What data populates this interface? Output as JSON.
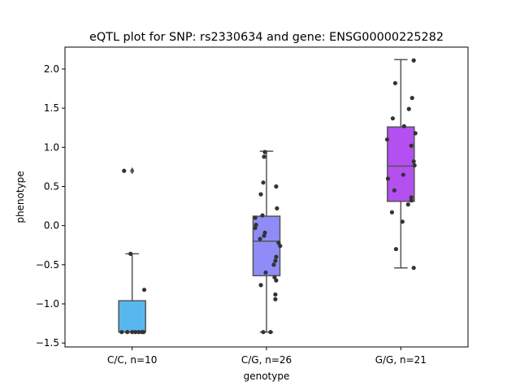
{
  "chart_data": {
    "type": "box",
    "title": "eQTL plot for SNP: rs2330634 and gene: ENSG00000225282",
    "xlabel": "genotype",
    "ylabel": "phenotype",
    "ylim": [
      -1.55,
      2.28
    ],
    "yticks": [
      -1.5,
      -1.0,
      -0.5,
      0.0,
      0.5,
      1.0,
      1.5,
      2.0
    ],
    "ytick_labels": [
      "−1.5",
      "−1.0",
      "−0.5",
      "0.0",
      "0.5",
      "1.0",
      "1.5",
      "2.0"
    ],
    "grid": false,
    "categories": [
      "C/C, n=10",
      "C/G, n=26",
      "G/G, n=21"
    ],
    "groups": [
      {
        "label": "C/C, n=10",
        "color": "#58b8ee",
        "box": {
          "whisker_low": -1.36,
          "q1": -1.36,
          "median": -1.36,
          "q3": -0.96,
          "whisker_high": -0.36
        },
        "outliers": [
          0.7
        ],
        "points": [
          {
            "x": -0.1,
            "y": 0.7
          },
          {
            "x": -0.02,
            "y": -0.36
          },
          {
            "x": 0.15,
            "y": -0.82
          },
          {
            "x": -0.13,
            "y": -1.36
          },
          {
            "x": -0.06,
            "y": -1.36
          },
          {
            "x": 0.0,
            "y": -1.36
          },
          {
            "x": 0.04,
            "y": -1.36
          },
          {
            "x": 0.08,
            "y": -1.36
          },
          {
            "x": 0.12,
            "y": -1.36
          },
          {
            "x": 0.14,
            "y": -1.36
          }
        ]
      },
      {
        "label": "C/G, n=26",
        "color": "#8f8cf8",
        "box": {
          "whisker_low": -1.36,
          "q1": -0.64,
          "median": -0.2,
          "q3": 0.12,
          "whisker_high": 0.95
        },
        "outliers": [],
        "points": [
          {
            "x": -0.02,
            "y": 0.94
          },
          {
            "x": -0.03,
            "y": 0.88
          },
          {
            "x": -0.04,
            "y": 0.55
          },
          {
            "x": 0.12,
            "y": 0.5
          },
          {
            "x": -0.07,
            "y": 0.4
          },
          {
            "x": 0.13,
            "y": 0.22
          },
          {
            "x": -0.05,
            "y": 0.13
          },
          {
            "x": -0.14,
            "y": 0.1
          },
          {
            "x": -0.13,
            "y": 0.01
          },
          {
            "x": -0.14,
            "y": -0.03
          },
          {
            "x": -0.02,
            "y": -0.09
          },
          {
            "x": -0.03,
            "y": -0.13
          },
          {
            "x": -0.08,
            "y": -0.17
          },
          {
            "x": 0.15,
            "y": -0.22
          },
          {
            "x": 0.17,
            "y": -0.26
          },
          {
            "x": 0.12,
            "y": -0.4
          },
          {
            "x": 0.11,
            "y": -0.45
          },
          {
            "x": 0.09,
            "y": -0.5
          },
          {
            "x": -0.01,
            "y": -0.6
          },
          {
            "x": 0.1,
            "y": -0.66
          },
          {
            "x": 0.12,
            "y": -0.7
          },
          {
            "x": -0.07,
            "y": -0.76
          },
          {
            "x": 0.11,
            "y": -0.88
          },
          {
            "x": 0.11,
            "y": -0.94
          },
          {
            "x": -0.04,
            "y": -1.36
          },
          {
            "x": 0.05,
            "y": -1.36
          }
        ]
      },
      {
        "label": "G/G, n=21",
        "color": "#b44ff0",
        "box": {
          "whisker_low": -0.54,
          "q1": 0.31,
          "median": 0.76,
          "q3": 1.26,
          "whisker_high": 2.12
        },
        "outliers": [],
        "points": [
          {
            "x": 0.16,
            "y": 2.11
          },
          {
            "x": -0.07,
            "y": 1.82
          },
          {
            "x": 0.14,
            "y": 1.63
          },
          {
            "x": 0.1,
            "y": 1.49
          },
          {
            "x": -0.1,
            "y": 1.37
          },
          {
            "x": 0.04,
            "y": 1.27
          },
          {
            "x": 0.18,
            "y": 1.18
          },
          {
            "x": -0.17,
            "y": 1.1
          },
          {
            "x": 0.13,
            "y": 1.02
          },
          {
            "x": 0.16,
            "y": 0.82
          },
          {
            "x": 0.17,
            "y": 0.77
          },
          {
            "x": 0.03,
            "y": 0.65
          },
          {
            "x": -0.16,
            "y": 0.6
          },
          {
            "x": -0.08,
            "y": 0.45
          },
          {
            "x": 0.13,
            "y": 0.36
          },
          {
            "x": 0.13,
            "y": 0.32
          },
          {
            "x": 0.09,
            "y": 0.27
          },
          {
            "x": -0.11,
            "y": 0.17
          },
          {
            "x": 0.02,
            "y": 0.05
          },
          {
            "x": -0.06,
            "y": -0.3
          },
          {
            "x": 0.16,
            "y": -0.54
          }
        ]
      }
    ]
  }
}
